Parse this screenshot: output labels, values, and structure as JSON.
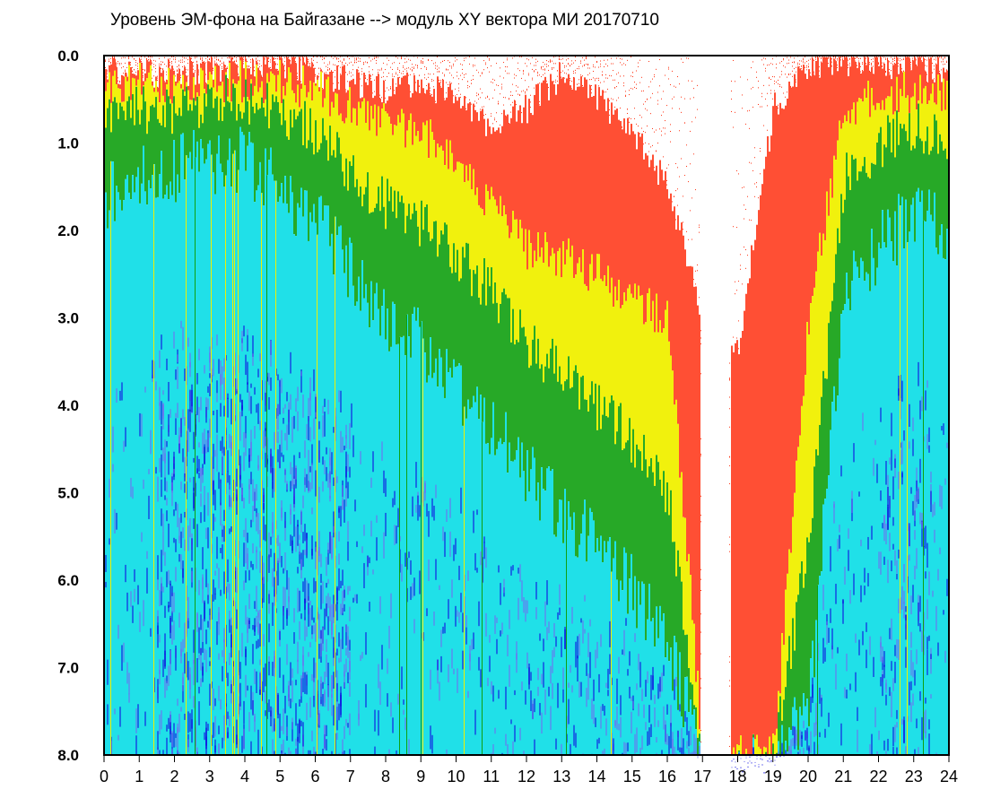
{
  "chart_data": {
    "type": "heatmap",
    "title": "Уровень ЭМ-фона на Байгазане  -->  модуль XY вектора МИ  20170710",
    "xlabel": "",
    "ylabel": "",
    "xlim": [
      0,
      24
    ],
    "ylim": [
      0,
      8
    ],
    "y_axis_direction": "top-to-bottom",
    "grid": false,
    "x_ticks": [
      "0",
      "1",
      "2",
      "3",
      "4",
      "5",
      "6",
      "7",
      "8",
      "9",
      "10",
      "11",
      "12",
      "13",
      "14",
      "15",
      "16",
      "17",
      "18",
      "19",
      "20",
      "21",
      "22",
      "23",
      "24"
    ],
    "y_ticks": [
      "0.0",
      "1.0",
      "2.0",
      "3.0",
      "4.0",
      "5.0",
      "6.0",
      "7.0",
      "8.0"
    ],
    "color_scale": [
      "#1010e0",
      "#7070f0",
      "#20e0e8",
      "#10a010",
      "#f0f000",
      "#ff3010"
    ],
    "profile": {
      "description_of_values": "hour, y-level where the signal reaches its lowest density band (upper edge of colored mass)",
      "hours": [
        0,
        1,
        2,
        3,
        4,
        5,
        6,
        7,
        8,
        9,
        10,
        11,
        12,
        13,
        14,
        15,
        16,
        17,
        18,
        19,
        20,
        21,
        22,
        23,
        24
      ],
      "top_edge": [
        0.2,
        0.2,
        0.2,
        0.15,
        0.1,
        0.1,
        0.2,
        0.3,
        0.4,
        0.3,
        0.5,
        0.8,
        0.6,
        0.2,
        0.5,
        0.9,
        1.5,
        3.0,
        3.3,
        0.6,
        0.1,
        0.1,
        0.1,
        0.1,
        0.2
      ],
      "red_band_bottom": [
        0.3,
        0.3,
        0.3,
        0.3,
        0.3,
        0.3,
        0.4,
        0.6,
        0.8,
        0.9,
        1.2,
        1.7,
        2.2,
        2.3,
        2.5,
        2.8,
        3.0,
        8.0,
        8.0,
        8.0,
        3.0,
        0.6,
        0.5,
        0.4,
        0.4
      ],
      "yellow_band_bottom": [
        0.8,
        0.6,
        0.6,
        0.5,
        0.5,
        0.6,
        0.9,
        1.3,
        1.7,
        1.9,
        2.3,
        2.7,
        3.3,
        3.6,
        4.0,
        4.4,
        5.0,
        8.0,
        8.0,
        8.0,
        5.5,
        1.4,
        1.0,
        0.8,
        0.9
      ],
      "green_band_bottom": [
        1.6,
        1.4,
        1.3,
        1.2,
        1.2,
        1.5,
        1.9,
        2.5,
        3.0,
        3.3,
        3.8,
        4.2,
        4.8,
        5.2,
        5.6,
        6.1,
        6.8,
        8.0,
        8.0,
        8.0,
        7.5,
        2.6,
        2.2,
        1.8,
        2.0
      ],
      "gap_hours": [
        16.9,
        17.8
      ]
    }
  }
}
